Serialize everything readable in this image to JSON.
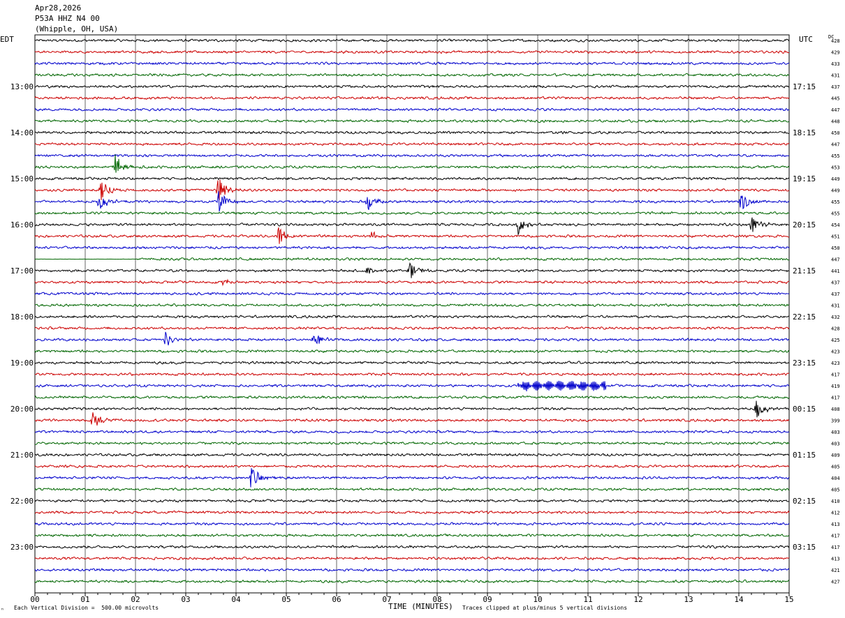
{
  "header": {
    "date": "Apr28,2026",
    "station": "P53A HHZ N4 00",
    "location": "(Whipple, OH, USA)"
  },
  "left_zone": "EDT",
  "right_zone": "UTC",
  "dc_label": "DC",
  "footer": {
    "scale_note": "Each Vertical Division =  500.00 microvolts",
    "clip_note": "Traces clipped at plus/minus 5 vertical divisions",
    "corner_mark": "ⁿ"
  },
  "colors": [
    "#000000",
    "#cc0000",
    "#0000cc",
    "#006600"
  ],
  "chart_data": {
    "type": "line",
    "title": "",
    "xlabel": "TIME (MINUTES)",
    "ylabel": "",
    "xlim": [
      0,
      15
    ],
    "x_ticks": [
      "00",
      "01",
      "02",
      "03",
      "04",
      "05",
      "06",
      "07",
      "08",
      "09",
      "10",
      "11",
      "12",
      "13",
      "14",
      "15"
    ],
    "left_hour_labels": [
      "13:00",
      "14:00",
      "15:00",
      "16:00",
      "17:00",
      "18:00",
      "19:00",
      "20:00",
      "21:00",
      "22:00",
      "23:00"
    ],
    "right_hour_labels": [
      "17:15",
      "18:15",
      "19:15",
      "20:15",
      "21:15",
      "22:15",
      "23:15",
      "00:15",
      "01:15",
      "02:15",
      "03:15"
    ],
    "trace_count": 48,
    "dc_offsets": [
      428,
      429,
      433,
      431,
      437,
      445,
      447,
      448,
      450,
      447,
      455,
      453,
      449,
      449,
      455,
      455,
      454,
      451,
      450,
      447,
      441,
      437,
      437,
      431,
      432,
      428,
      425,
      423,
      423,
      417,
      419,
      417,
      408,
      399,
      403,
      403,
      409,
      405,
      404,
      405,
      410,
      412,
      413,
      417,
      417,
      413,
      421,
      427
    ],
    "events": [
      {
        "trace": 11,
        "minute": 1.6,
        "amplitude": 5,
        "duration": 0.3
      },
      {
        "trace": 13,
        "minute": 1.3,
        "amplitude": 5,
        "duration": 0.3
      },
      {
        "trace": 13,
        "minute": 3.65,
        "amplitude": 5,
        "duration": 0.3
      },
      {
        "trace": 14,
        "minute": 1.28,
        "amplitude": 4,
        "duration": 0.3
      },
      {
        "trace": 14,
        "minute": 3.65,
        "amplitude": 4,
        "duration": 0.3
      },
      {
        "trace": 14,
        "minute": 6.6,
        "amplitude": 4,
        "duration": 0.25
      },
      {
        "trace": 14,
        "minute": 14.05,
        "amplitude": 4,
        "duration": 0.25
      },
      {
        "trace": 16,
        "minute": 9.6,
        "amplitude": 4,
        "duration": 0.25
      },
      {
        "trace": 16,
        "minute": 14.25,
        "amplitude": 3,
        "duration": 0.3
      },
      {
        "trace": 17,
        "minute": 4.85,
        "amplitude": 4,
        "duration": 0.3
      },
      {
        "trace": 17,
        "minute": 6.7,
        "amplitude": 2,
        "duration": 0.2
      },
      {
        "trace": 20,
        "minute": 7.45,
        "amplitude": 3,
        "duration": 0.3
      },
      {
        "trace": 20,
        "minute": 6.6,
        "amplitude": 2,
        "duration": 0.15
      },
      {
        "trace": 21,
        "minute": 3.75,
        "amplitude": 1.5,
        "duration": 0.2
      },
      {
        "trace": 26,
        "minute": 2.6,
        "amplitude": 3,
        "duration": 0.25
      },
      {
        "trace": 26,
        "minute": 5.55,
        "amplitude": 3,
        "duration": 0.25
      },
      {
        "trace": 32,
        "minute": 14.35,
        "amplitude": 4,
        "duration": 0.3
      },
      {
        "trace": 33,
        "minute": 1.15,
        "amplitude": 3,
        "duration": 0.35
      },
      {
        "trace": 38,
        "minute": 4.3,
        "amplitude": 4,
        "duration": 0.35
      }
    ],
    "tremor": [
      {
        "trace": 30,
        "from_minute": 9.6,
        "to_minute": 11.35,
        "amplitude": 1.8
      }
    ],
    "flat_segments": [
      {
        "trace": 19,
        "from_minute": 0.0,
        "to_minute": 2.0
      }
    ]
  }
}
